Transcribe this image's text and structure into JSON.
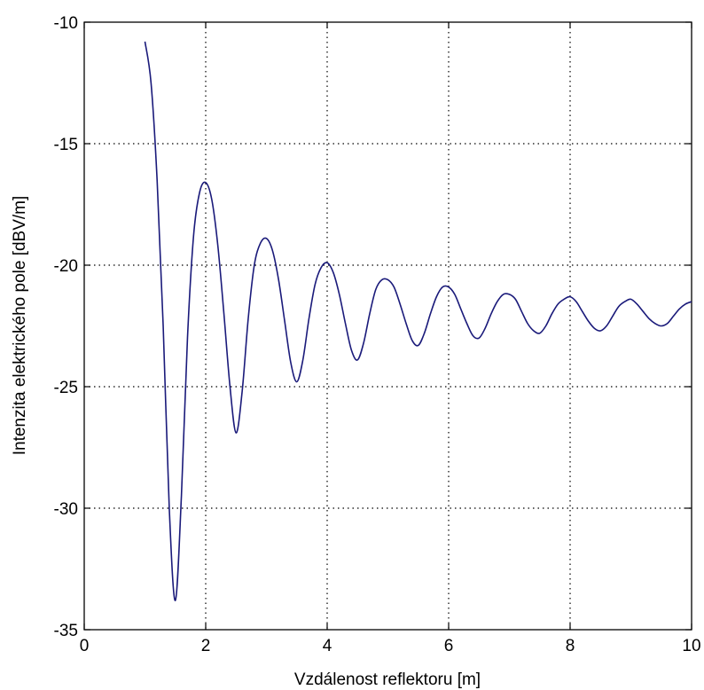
{
  "chart_data": {
    "type": "line",
    "xlabel": "Vzdálenost reflektoru [m]",
    "ylabel": "Intenzita elektrického pole [dBV/m]",
    "xlim": [
      0,
      10
    ],
    "ylim": [
      -35,
      -10
    ],
    "xticks": [
      0,
      2,
      4,
      6,
      8,
      10
    ],
    "yticks": [
      -35,
      -30,
      -25,
      -20,
      -15,
      -10
    ],
    "xtick_labels": [
      "0",
      "2",
      "4",
      "6",
      "8",
      "10"
    ],
    "ytick_labels": [
      "-35",
      "-30",
      "-25",
      "-20",
      "-15",
      "-10"
    ],
    "grid": true,
    "series": [
      {
        "color": "#1a1a7a",
        "points": [
          [
            1.0,
            -10.8
          ],
          [
            1.1,
            -12.5
          ],
          [
            1.2,
            -16.5
          ],
          [
            1.3,
            -22.5
          ],
          [
            1.4,
            -30.0
          ],
          [
            1.5,
            -33.8
          ],
          [
            1.6,
            -29.5
          ],
          [
            1.7,
            -23.0
          ],
          [
            1.8,
            -18.8
          ],
          [
            1.9,
            -17.0
          ],
          [
            2.0,
            -16.6
          ],
          [
            2.1,
            -17.3
          ],
          [
            2.2,
            -19.2
          ],
          [
            2.3,
            -22.0
          ],
          [
            2.4,
            -25.0
          ],
          [
            2.5,
            -26.9
          ],
          [
            2.6,
            -25.2
          ],
          [
            2.7,
            -22.2
          ],
          [
            2.8,
            -20.0
          ],
          [
            2.9,
            -19.1
          ],
          [
            3.0,
            -18.9
          ],
          [
            3.1,
            -19.4
          ],
          [
            3.2,
            -20.6
          ],
          [
            3.3,
            -22.3
          ],
          [
            3.4,
            -24.0
          ],
          [
            3.5,
            -24.8
          ],
          [
            3.6,
            -23.9
          ],
          [
            3.7,
            -22.2
          ],
          [
            3.8,
            -20.8
          ],
          [
            3.9,
            -20.1
          ],
          [
            4.0,
            -19.9
          ],
          [
            4.1,
            -20.3
          ],
          [
            4.2,
            -21.2
          ],
          [
            4.3,
            -22.4
          ],
          [
            4.4,
            -23.5
          ],
          [
            4.5,
            -23.9
          ],
          [
            4.6,
            -23.2
          ],
          [
            4.7,
            -22.0
          ],
          [
            4.8,
            -21.0
          ],
          [
            4.9,
            -20.6
          ],
          [
            5.0,
            -20.6
          ],
          [
            5.1,
            -20.9
          ],
          [
            5.2,
            -21.6
          ],
          [
            5.3,
            -22.4
          ],
          [
            5.4,
            -23.1
          ],
          [
            5.5,
            -23.3
          ],
          [
            5.6,
            -22.8
          ],
          [
            5.7,
            -22.0
          ],
          [
            5.8,
            -21.3
          ],
          [
            5.9,
            -20.9
          ],
          [
            6.0,
            -20.9
          ],
          [
            6.1,
            -21.2
          ],
          [
            6.2,
            -21.8
          ],
          [
            6.3,
            -22.4
          ],
          [
            6.4,
            -22.9
          ],
          [
            6.5,
            -23.0
          ],
          [
            6.6,
            -22.6
          ],
          [
            6.7,
            -22.0
          ],
          [
            6.8,
            -21.5
          ],
          [
            6.9,
            -21.2
          ],
          [
            7.0,
            -21.2
          ],
          [
            7.1,
            -21.4
          ],
          [
            7.2,
            -21.9
          ],
          [
            7.3,
            -22.4
          ],
          [
            7.4,
            -22.7
          ],
          [
            7.5,
            -22.8
          ],
          [
            7.6,
            -22.5
          ],
          [
            7.7,
            -22.0
          ],
          [
            7.8,
            -21.6
          ],
          [
            7.9,
            -21.4
          ],
          [
            8.0,
            -21.3
          ],
          [
            8.1,
            -21.5
          ],
          [
            8.2,
            -21.9
          ],
          [
            8.3,
            -22.3
          ],
          [
            8.4,
            -22.6
          ],
          [
            8.5,
            -22.7
          ],
          [
            8.6,
            -22.5
          ],
          [
            8.7,
            -22.1
          ],
          [
            8.8,
            -21.7
          ],
          [
            8.9,
            -21.5
          ],
          [
            9.0,
            -21.4
          ],
          [
            9.1,
            -21.6
          ],
          [
            9.2,
            -21.9
          ],
          [
            9.3,
            -22.2
          ],
          [
            9.4,
            -22.4
          ],
          [
            9.5,
            -22.5
          ],
          [
            9.6,
            -22.4
          ],
          [
            9.7,
            -22.1
          ],
          [
            9.8,
            -21.8
          ],
          [
            9.9,
            -21.6
          ],
          [
            10.0,
            -21.5
          ]
        ]
      }
    ]
  }
}
